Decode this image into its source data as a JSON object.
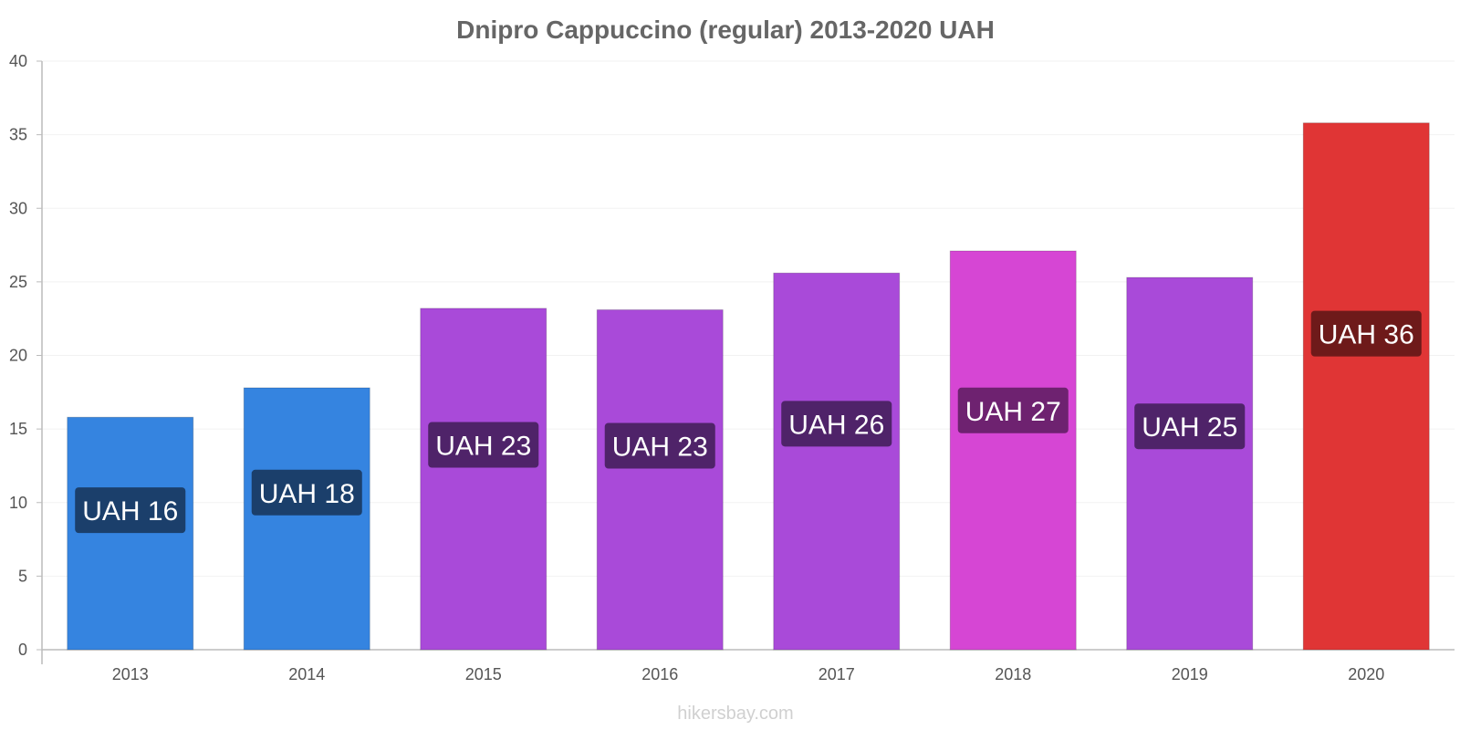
{
  "chart_data": {
    "type": "bar",
    "title": "Dnipro Cappuccino (regular) 2013-2020 UAH",
    "categories": [
      "2013",
      "2014",
      "2015",
      "2016",
      "2017",
      "2018",
      "2019",
      "2020"
    ],
    "values": [
      15.8,
      17.8,
      23.2,
      23.1,
      25.6,
      27.1,
      25.3,
      35.8
    ],
    "data_labels": [
      "UAH 16",
      "UAH 18",
      "UAH 23",
      "UAH 23",
      "UAH 26",
      "UAH 27",
      "UAH 25",
      "UAH 36"
    ],
    "bar_colors": [
      "#3584e0",
      "#3584e0",
      "#a94ad9",
      "#a94ad9",
      "#a94ad9",
      "#d646d4",
      "#a94ad9",
      "#e03535"
    ],
    "label_bg_colors": [
      "#1b3f6b",
      "#1b3f6b",
      "#4f2369",
      "#4f2369",
      "#4f2369",
      "#6e2270",
      "#4f2369",
      "#6e1a1a"
    ],
    "ylim": [
      0,
      40
    ],
    "yticks": [
      0,
      5,
      10,
      15,
      20,
      25,
      30,
      35,
      40
    ],
    "xlabel": "",
    "ylabel": "",
    "grid": true,
    "legend": "none"
  },
  "watermark": "hikersbay.com"
}
